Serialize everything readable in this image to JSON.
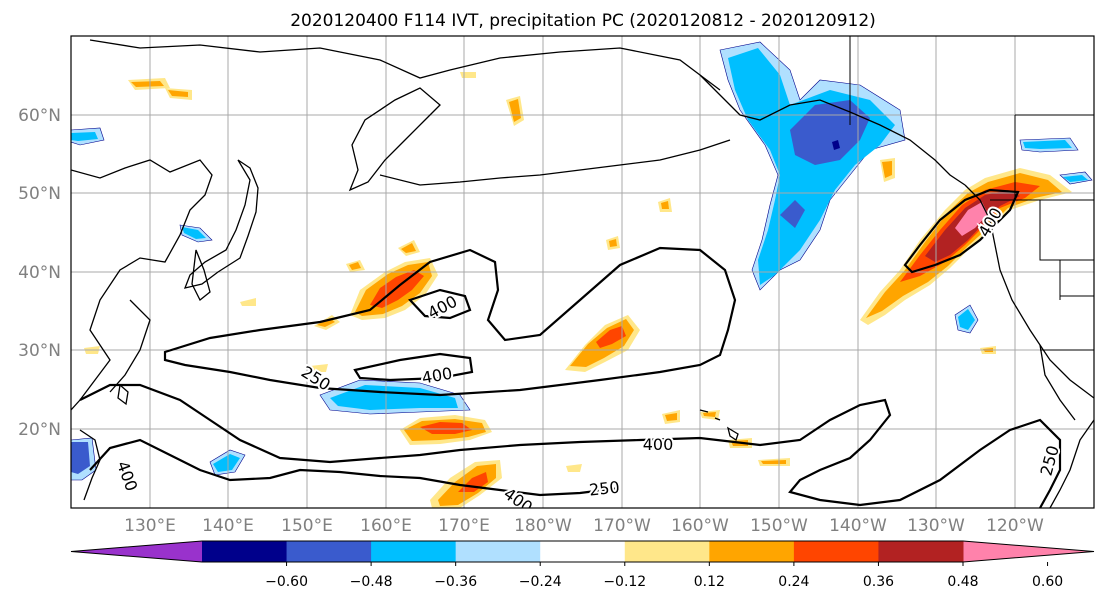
{
  "title": "2020120400 F114 IVT, precipitation PC (2020120812 - 2020120912)",
  "map": {
    "lon_labels": [
      "130°E",
      "140°E",
      "150°E",
      "160°E",
      "170°E",
      "180°W",
      "170°W",
      "160°W",
      "150°W",
      "140°W",
      "130°W",
      "120°W"
    ],
    "lat_labels": [
      "60°N",
      "50°N",
      "40°N",
      "30°N",
      "20°N"
    ],
    "grid": true,
    "coastline_color": "#000000"
  },
  "ivt_contours": {
    "color": "#000000",
    "labels": [
      "400",
      "400",
      "250",
      "400",
      "250",
      "400",
      "400",
      "400",
      "250"
    ]
  },
  "colorbar": {
    "colors": [
      "#9932cc",
      "#00008b",
      "#3a5bcd",
      "#00bfff",
      "#b0e0ff",
      "#ffffff",
      "#ffe78a",
      "#ffa500",
      "#ff4500",
      "#b22222",
      "#ff82ab"
    ],
    "tick_labels": [
      "−0.60",
      "−0.48",
      "−0.36",
      "−0.24",
      "−0.12",
      "0.12",
      "0.24",
      "0.36",
      "0.48",
      "0.60"
    ],
    "extend": "both"
  },
  "precip_colors": {
    "pos_light": "#ffe78a",
    "pos_mid": "#ffa500",
    "pos_high": "#ff4500",
    "pos_higher": "#b22222",
    "pos_max": "#ff82ab",
    "neg_light": "#b0e0ff",
    "neg_mid": "#00bfff",
    "neg_high": "#3a5bcd",
    "neg_max": "#00008b"
  }
}
